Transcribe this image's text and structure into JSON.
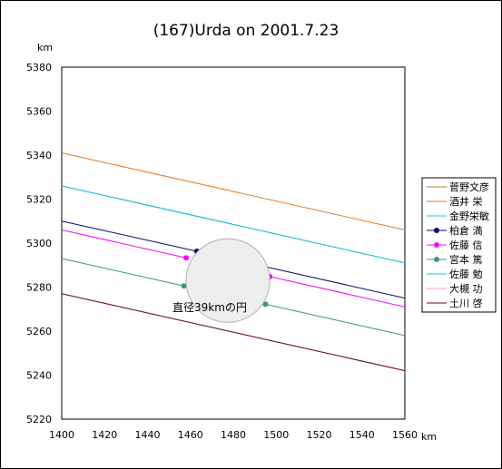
{
  "chart_data": {
    "type": "line",
    "title": "(167)Urda on 2001.7.23",
    "xlabel": "km",
    "ylabel": "km",
    "xlim": [
      1400,
      1560
    ],
    "ylim": [
      5220,
      5380
    ],
    "xticks": [
      1400,
      1420,
      1440,
      1460,
      1480,
      1500,
      1520,
      1540,
      1560
    ],
    "yticks": [
      5220,
      5240,
      5260,
      5280,
      5300,
      5320,
      5340,
      5360,
      5380
    ],
    "grid": false,
    "legend_position": "right",
    "annotation": {
      "text": "直径39kmの円",
      "circle_center": [
        1477.5,
        5283
      ],
      "circle_diameter_km": 39
    },
    "series": [
      {
        "name": "菅野文彦",
        "color": "#b08a30",
        "marker": false,
        "segments": [
          [
            [
              1400,
              5277
            ],
            [
              1560,
              5242
            ]
          ]
        ]
      },
      {
        "name": "酒井 栄",
        "color": "#e87a20",
        "marker": false,
        "segments": [
          [
            [
              1400,
              5341
            ],
            [
              1560,
              5306
            ]
          ]
        ]
      },
      {
        "name": "金野栄敏",
        "color": "#20c0e0",
        "marker": false,
        "segments": [
          [
            [
              1400,
              5326
            ],
            [
              1560,
              5291
            ]
          ]
        ]
      },
      {
        "name": "柏倉 満",
        "color": "#0a0a6e",
        "marker": true,
        "segments": [
          [
            [
              1400,
              5310
            ],
            [
              1463,
              5296.3
            ]
          ],
          [
            [
              1494,
              5289.5
            ],
            [
              1560,
              5275
            ]
          ]
        ]
      },
      {
        "name": "佐藤 信",
        "color": "#ff00ff",
        "marker": true,
        "segments": [
          [
            [
              1400,
              5306
            ],
            [
              1458,
              5293.3
            ]
          ],
          [
            [
              1497,
              5284.8
            ],
            [
              1560,
              5271
            ]
          ]
        ]
      },
      {
        "name": "宮本 篤",
        "color": "#3a9a70",
        "marker": true,
        "segments": [
          [
            [
              1400,
              5293
            ],
            [
              1457,
              5280.5
            ]
          ],
          [
            [
              1495,
              5272.2
            ],
            [
              1560,
              5258
            ]
          ]
        ]
      },
      {
        "name": "佐藤 勉",
        "color": "#20c0e0",
        "marker": false,
        "segments": [
          [
            [
              1400,
              5326
            ],
            [
              1560,
              5291
            ]
          ]
        ]
      },
      {
        "name": "大槻 功",
        "color": "#ff9acb",
        "marker": false,
        "segments": []
      },
      {
        "name": "土川 啓",
        "color": "#6e0a28",
        "marker": false,
        "segments": [
          [
            [
              1400,
              5277
            ],
            [
              1560,
              5242
            ]
          ]
        ]
      }
    ]
  }
}
